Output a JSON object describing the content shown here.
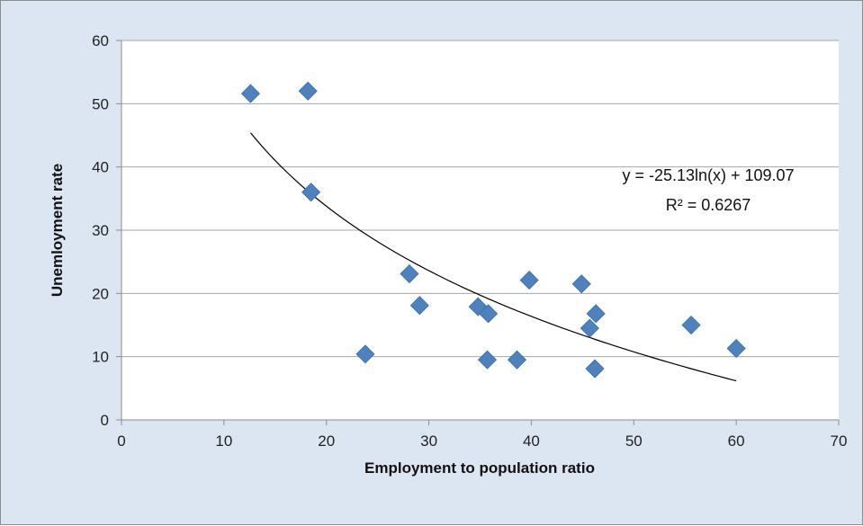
{
  "chart_data": {
    "type": "scatter",
    "title": "",
    "xlabel": "Employment to population ratio",
    "ylabel": "Unemloyment rate",
    "xlim": [
      0,
      70
    ],
    "ylim": [
      0,
      60
    ],
    "xticks": [
      0,
      10,
      20,
      30,
      40,
      50,
      60,
      70
    ],
    "yticks": [
      0,
      10,
      20,
      30,
      40,
      50,
      60
    ],
    "grid": {
      "horizontal": true,
      "vertical": false
    },
    "legend": "none",
    "marker": "diamond",
    "colors": {
      "marker": "#4f81bd",
      "trendline": "#000000",
      "plot_bg": "#ffffff",
      "chart_bg": "#dce6f2",
      "gridline": "#a6a6a6"
    },
    "points": [
      {
        "x": 12.6,
        "y": 51.6
      },
      {
        "x": 18.2,
        "y": 52.0
      },
      {
        "x": 18.5,
        "y": 36.0
      },
      {
        "x": 23.8,
        "y": 10.4
      },
      {
        "x": 28.1,
        "y": 23.1
      },
      {
        "x": 29.1,
        "y": 18.1
      },
      {
        "x": 34.8,
        "y": 17.9
      },
      {
        "x": 35.8,
        "y": 16.8
      },
      {
        "x": 35.7,
        "y": 9.5
      },
      {
        "x": 38.6,
        "y": 9.5
      },
      {
        "x": 39.8,
        "y": 22.1
      },
      {
        "x": 44.9,
        "y": 21.5
      },
      {
        "x": 45.7,
        "y": 14.5
      },
      {
        "x": 46.3,
        "y": 16.8
      },
      {
        "x": 46.2,
        "y": 8.1
      },
      {
        "x": 55.6,
        "y": 15.0
      },
      {
        "x": 60.0,
        "y": 11.3
      }
    ],
    "trendline": {
      "type": "logarithmic",
      "a": -25.13,
      "b": 109.07,
      "x_range": [
        12.6,
        60.0
      ],
      "equation_label": "y = -25.13ln(x) + 109.07",
      "r2_label": "R² = 0.6267"
    }
  }
}
